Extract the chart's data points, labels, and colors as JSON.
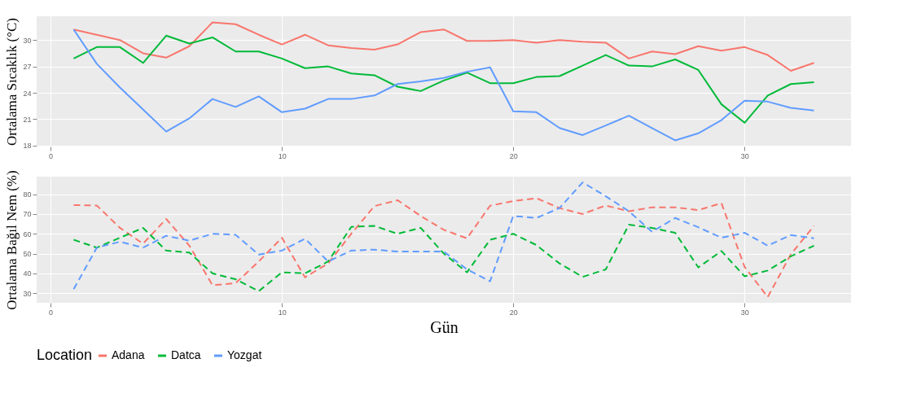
{
  "chart_data": [
    {
      "type": "line",
      "ylabel": "Ortalama Sıcaklık (°C)",
      "x": [
        1,
        2,
        3,
        4,
        5,
        6,
        7,
        8,
        9,
        10,
        11,
        12,
        13,
        14,
        15,
        16,
        17,
        18,
        19,
        20,
        21,
        22,
        23,
        24,
        25,
        26,
        27,
        28,
        29,
        30,
        31,
        32,
        33
      ],
      "series": [
        {
          "name": "Adana",
          "color": "#f8766d",
          "values": [
            31.2,
            30.6,
            30.0,
            28.5,
            28.0,
            29.3,
            32.0,
            31.8,
            30.6,
            29.5,
            30.6,
            29.4,
            29.1,
            28.9,
            29.5,
            30.9,
            31.2,
            29.9,
            29.9,
            30.0,
            29.7,
            30.0,
            29.8,
            29.7,
            27.9,
            28.7,
            28.4,
            29.3,
            28.8,
            29.2,
            28.3,
            26.5,
            27.4
          ]
        },
        {
          "name": "Datca",
          "color": "#00ba38",
          "values": [
            27.9,
            29.2,
            29.2,
            27.4,
            30.5,
            29.6,
            30.3,
            28.7,
            28.7,
            27.9,
            26.8,
            27.0,
            26.2,
            26.0,
            24.7,
            24.2,
            25.4,
            26.3,
            25.1,
            25.1,
            25.8,
            25.9,
            27.1,
            28.3,
            27.1,
            27.0,
            27.8,
            26.6,
            22.7,
            20.6,
            23.7,
            25.0,
            25.2
          ]
        },
        {
          "name": "Yozgat",
          "color": "#619cff",
          "values": [
            31.2,
            27.3,
            24.6,
            22.1,
            19.6,
            21.1,
            23.3,
            22.4,
            23.6,
            21.8,
            22.2,
            23.3,
            23.3,
            23.7,
            25.0,
            25.3,
            25.7,
            26.4,
            26.9,
            21.9,
            21.8,
            20.0,
            19.2,
            20.3,
            21.4,
            20.0,
            18.6,
            19.4,
            20.9,
            23.1,
            23.0,
            22.3,
            22.0
          ]
        }
      ],
      "xlim": [
        -0.6,
        34.6
      ],
      "xticks": [
        0,
        10,
        20,
        30
      ],
      "ylim": [
        17.9,
        32.7
      ],
      "yticks": [
        18,
        21,
        24,
        27,
        30
      ],
      "grid": true,
      "line_style": "solid",
      "legend": "bottom",
      "legend_title": "Location"
    },
    {
      "type": "line",
      "xlabel": "Gün",
      "ylabel": "Ortalama Bağıl Nem (%)",
      "x": [
        1,
        2,
        3,
        4,
        5,
        6,
        7,
        8,
        9,
        10,
        11,
        12,
        13,
        14,
        15,
        16,
        17,
        18,
        19,
        20,
        21,
        22,
        23,
        24,
        25,
        26,
        27,
        28,
        29,
        30,
        31,
        32,
        33
      ],
      "series": [
        {
          "name": "Adana",
          "color": "#f8766d",
          "values": [
            74.5,
            74.3,
            63,
            55,
            67.5,
            54,
            34,
            35,
            46,
            58,
            38,
            45,
            60,
            74,
            77,
            69,
            62,
            57.7,
            74.2,
            76.5,
            78,
            73,
            70,
            74.3,
            71.4,
            73.4,
            73.4,
            72,
            75.5,
            43.3,
            28,
            49.6,
            64
          ]
        },
        {
          "name": "Datca",
          "color": "#00ba38",
          "values": [
            57,
            53,
            58,
            63,
            51.5,
            50.5,
            40,
            37,
            31,
            40.5,
            40,
            46,
            63.5,
            64,
            60,
            63,
            50,
            40.5,
            57,
            60,
            54.3,
            45,
            38.2,
            42,
            64.6,
            63,
            60.5,
            43,
            51.3,
            38.5,
            41.4,
            48.6,
            54
          ]
        },
        {
          "name": "Yozgat",
          "color": "#619cff",
          "values": [
            32,
            53,
            56,
            53,
            59,
            56.5,
            60,
            59.5,
            49.5,
            51.5,
            57.5,
            46,
            51.5,
            52,
            51,
            51,
            51,
            42,
            36,
            69,
            68,
            73,
            86,
            79,
            71.4,
            61,
            68,
            63.3,
            58,
            60.5,
            54,
            59.4,
            57.7
          ]
        }
      ],
      "xlim": [
        -0.6,
        34.6
      ],
      "xticks": [
        0,
        10,
        20,
        30
      ],
      "ylim": [
        25.1,
        88.9
      ],
      "yticks": [
        30,
        40,
        50,
        60,
        70,
        80
      ],
      "grid": true,
      "line_style": "dashed"
    }
  ]
}
